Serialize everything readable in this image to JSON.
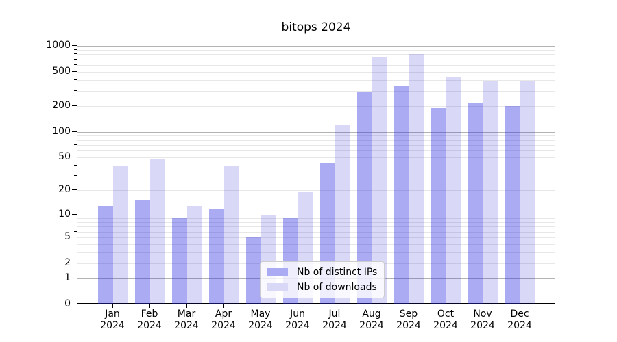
{
  "chart_data": {
    "type": "bar",
    "title": "bitops 2024",
    "categories": [
      "Jan",
      "Feb",
      "Mar",
      "Apr",
      "May",
      "Jun",
      "Jul",
      "Aug",
      "Sep",
      "Oct",
      "Nov",
      "Dec"
    ],
    "year": "2024",
    "yscale": "log1p",
    "yticks": [
      0,
      1,
      2,
      5,
      10,
      20,
      50,
      100,
      200,
      500,
      1000
    ],
    "ylim": [
      0,
      1160
    ],
    "grid": "horizontal gridlines: major at powers of 10, minor at 2-9 per decade",
    "legend_position": "lower center",
    "colors": {
      "axis": "#000000",
      "grid_major": "#b2b2b2",
      "grid_minor": "#e7e7e7",
      "legend_border": "#cccccc"
    },
    "series": [
      {
        "name": "Nb of distinct IPs",
        "fill": "rgba(45,45,225,0.40)",
        "swatch_color": "#ababf3",
        "values": [
          13,
          15,
          9,
          12,
          5,
          9,
          42,
          290,
          340,
          190,
          215,
          200
        ]
      },
      {
        "name": "Nb of downloads",
        "fill": "rgba(30,30,210,0.17)",
        "swatch_color": "#d9d9f7",
        "values": [
          40,
          47,
          13,
          40,
          10,
          19,
          120,
          730,
          800,
          440,
          385,
          385
        ]
      }
    ]
  }
}
